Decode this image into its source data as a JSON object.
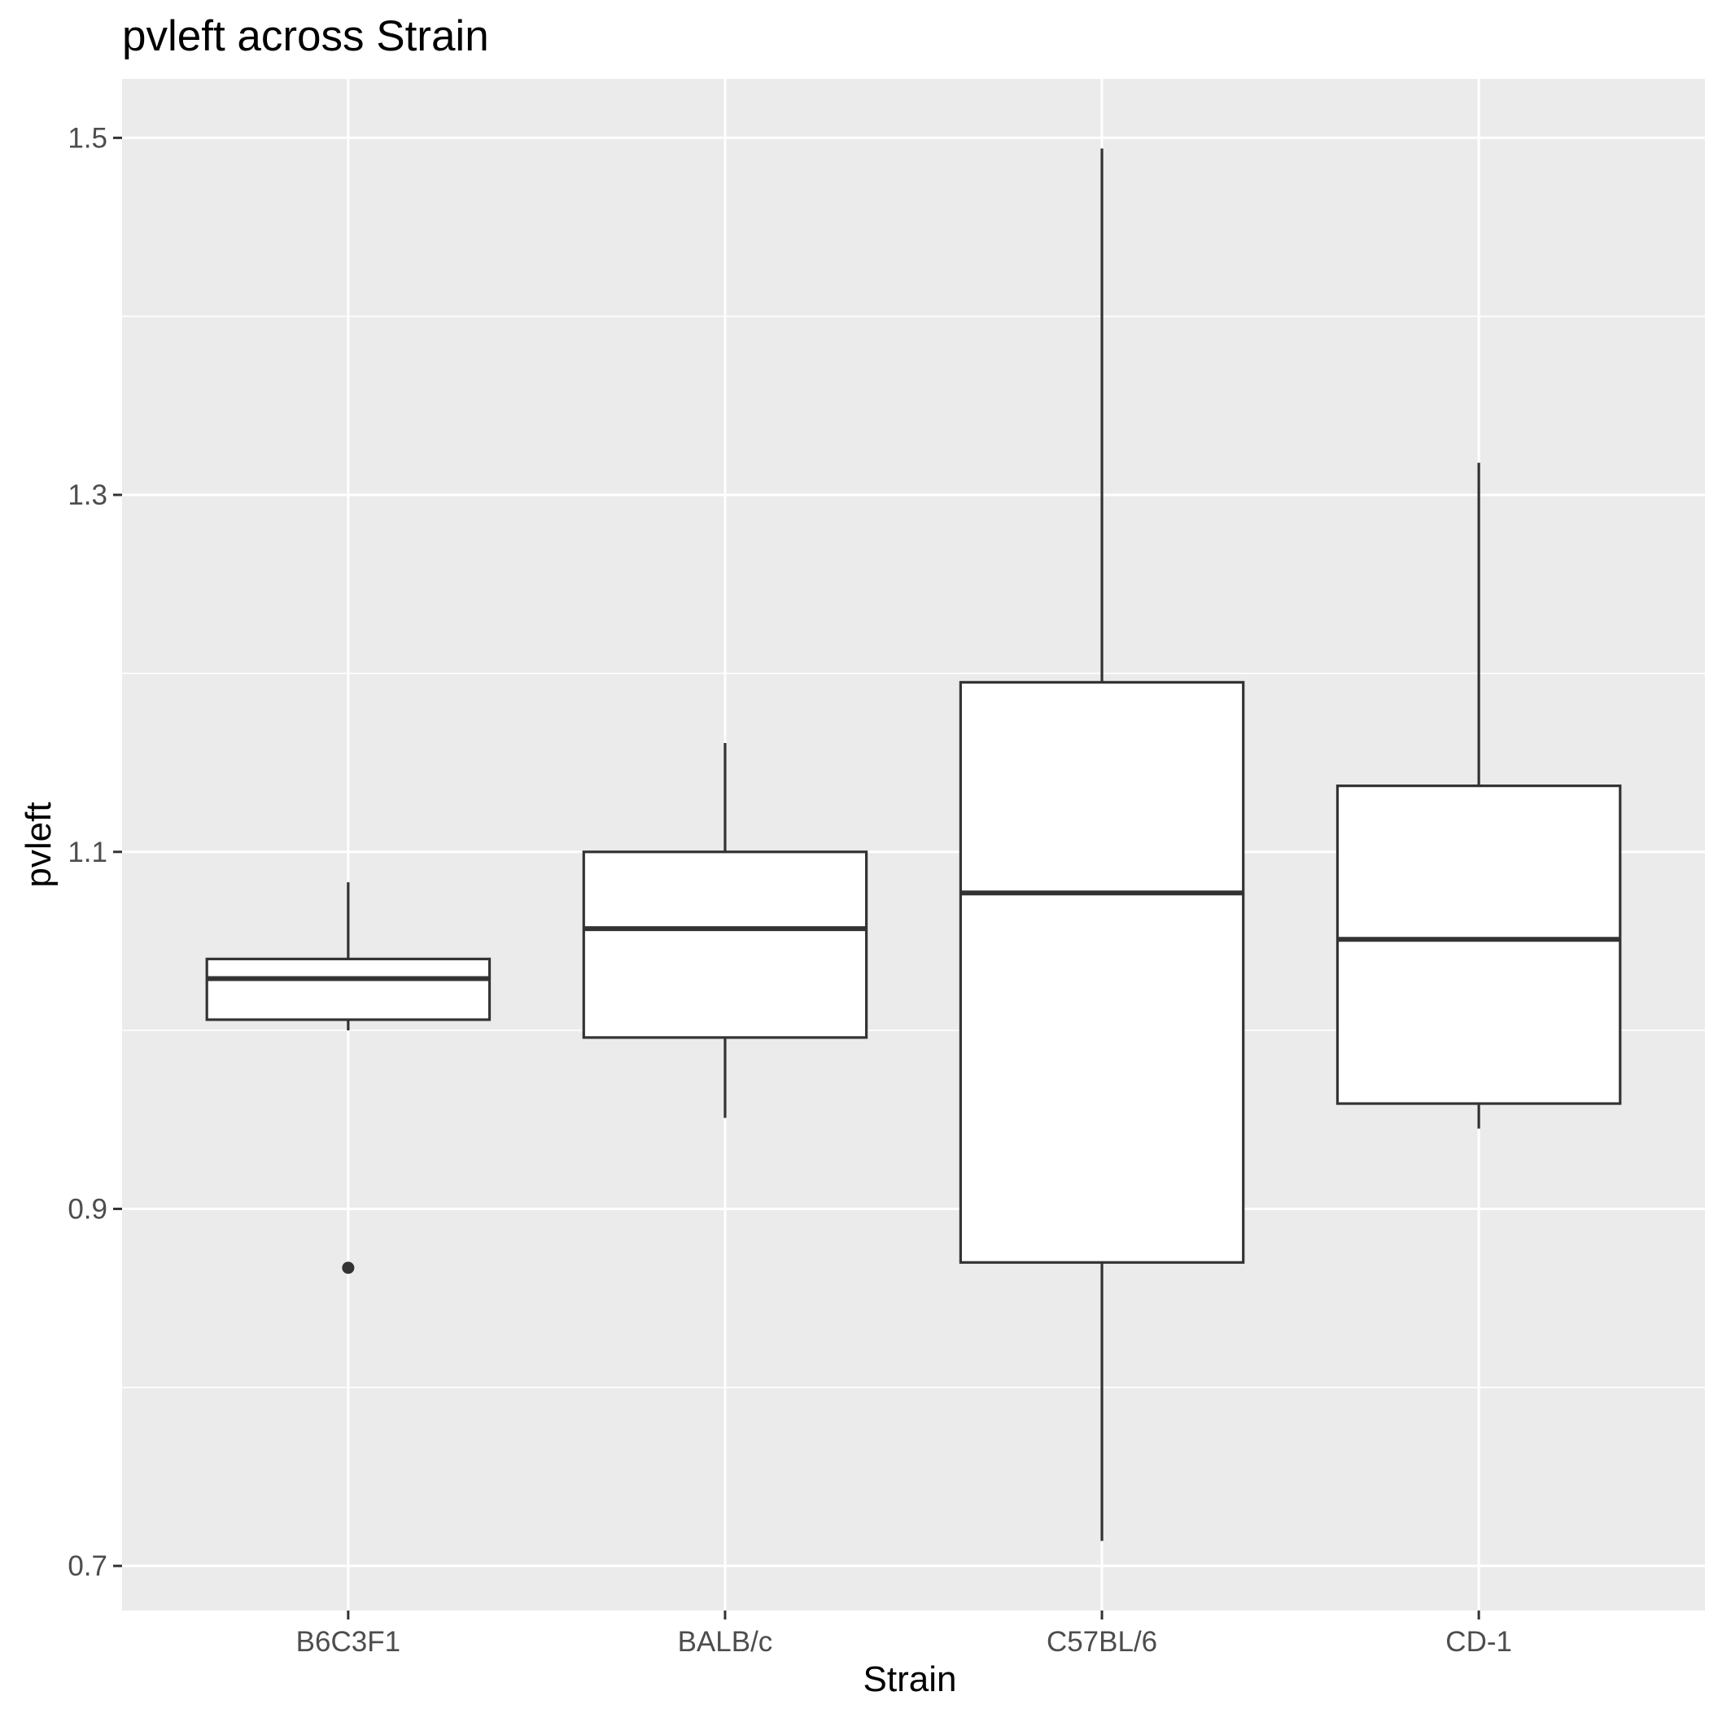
{
  "chart_data": {
    "type": "box",
    "title": "pvleft across Strain",
    "xlabel": "Strain",
    "ylabel": "pvleft",
    "categories": [
      "B6C3F1",
      "BALB/c",
      "C57BL/6",
      "CD-1"
    ],
    "y_ticks": [
      "0.7",
      "0.9",
      "1.1",
      "1.3",
      "1.5"
    ],
    "ylim": [
      0.675,
      1.533
    ],
    "grid": true,
    "legend": "none",
    "boxes": [
      {
        "category": "B6C3F1",
        "whisker_low": 1.0,
        "q1": 1.006,
        "median": 1.029,
        "q3": 1.04,
        "whisker_high": 1.083,
        "outliers": [
          0.867
        ]
      },
      {
        "category": "BALB/c",
        "whisker_low": 0.951,
        "q1": 0.996,
        "median": 1.057,
        "q3": 1.1,
        "whisker_high": 1.161,
        "outliers": []
      },
      {
        "category": "C57BL/6",
        "whisker_low": 0.714,
        "q1": 0.87,
        "median": 1.077,
        "q3": 1.195,
        "whisker_high": 1.494,
        "outliers": []
      },
      {
        "category": "CD-1",
        "whisker_low": 0.945,
        "q1": 0.959,
        "median": 1.051,
        "q3": 1.137,
        "whisker_high": 1.318,
        "outliers": []
      }
    ],
    "colors": {
      "panel": "#EBEBEB",
      "grid": "#FFFFFF",
      "box_fill": "#FFFFFF",
      "box_line": "#333333",
      "tick_text": "#4D4D4D",
      "title_text": "#000000"
    }
  }
}
